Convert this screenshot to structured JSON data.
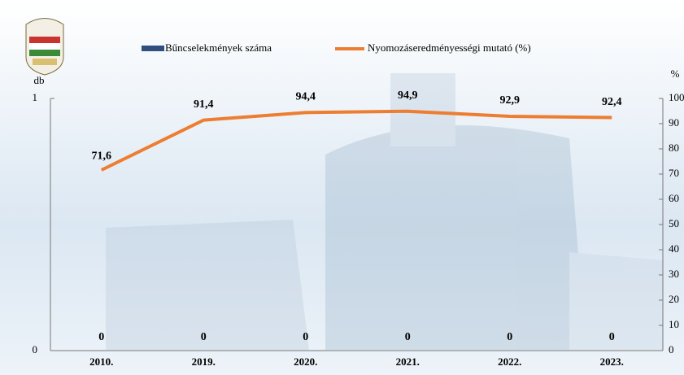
{
  "chart_data": {
    "type": "bar_line",
    "categories": [
      "2010.",
      "2019.",
      "2020.",
      "2021.",
      "2022.",
      "2023."
    ],
    "series": [
      {
        "name": "Bűncselekmények száma",
        "type": "bar",
        "color": "#2f4f7f",
        "values": [
          0,
          0,
          0,
          0,
          0,
          0
        ]
      },
      {
        "name": "Nyomozáseredményességi mutató (%)",
        "type": "line",
        "axis": "y2",
        "color": "#ed7d31",
        "values": [
          71.6,
          91.4,
          94.4,
          94.9,
          92.9,
          92.4
        ],
        "value_labels": [
          "71,6",
          "91,4",
          "94,4",
          "94,9",
          "92,9",
          "92,4"
        ]
      }
    ],
    "y_label": "db",
    "y2_label": "%",
    "ylim": [
      0,
      1
    ],
    "yticks": [
      0,
      1
    ],
    "y2lim": [
      0,
      100
    ],
    "y2ticks": [
      0,
      10,
      20,
      30,
      40,
      50,
      60,
      70,
      80,
      90,
      100
    ]
  }
}
